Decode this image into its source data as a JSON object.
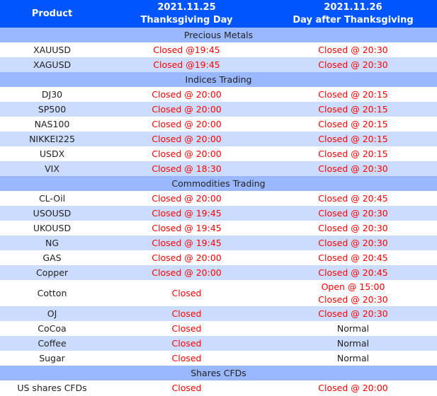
{
  "header": {
    "product": "Product",
    "day1_date": "2021.11.25",
    "day1_name": "Thanksgiving Day",
    "day2_date": "2021.11.26",
    "day2_name": "Day after Thanksgiving"
  },
  "colors": {
    "header": "#0055ff",
    "section": "#99b8ff",
    "alt_row": "#ccdcff",
    "closed_text": "#ff0000"
  },
  "sections": [
    {
      "title": "Precious Metals",
      "rows": [
        {
          "product": "XAUUSD",
          "day1": [
            "Closed @19:45"
          ],
          "day2": [
            "Closed @ 20:30"
          ]
        },
        {
          "product": "XAGUSD",
          "day1": [
            "Closed @19:45"
          ],
          "day2": [
            "Closed @ 20:30"
          ]
        }
      ]
    },
    {
      "title": "Indices Trading",
      "rows": [
        {
          "product": "DJ30",
          "day1": [
            "Closed @ 20:00"
          ],
          "day2": [
            "Closed @ 20:15"
          ]
        },
        {
          "product": "SP500",
          "day1": [
            "Closed @ 20:00"
          ],
          "day2": [
            "Closed @ 20:15"
          ]
        },
        {
          "product": "NAS100",
          "day1": [
            "Closed @ 20:00"
          ],
          "day2": [
            "Closed @ 20:15"
          ]
        },
        {
          "product": "NIKKEI225",
          "day1": [
            "Closed @ 20:00"
          ],
          "day2": [
            "Closed @ 20:15"
          ]
        },
        {
          "product": "USDX",
          "day1": [
            "Closed @ 20:00"
          ],
          "day2": [
            "Closed @ 20:15"
          ]
        },
        {
          "product": "VIX",
          "day1": [
            "Closed @ 18:30"
          ],
          "day2": [
            "Closed @ 20:30"
          ]
        }
      ]
    },
    {
      "title": "Commodities Trading",
      "rows": [
        {
          "product": "CL-Oil",
          "day1": [
            "Closed @ 20:00"
          ],
          "day2": [
            "Closed @ 20:45"
          ]
        },
        {
          "product": "USOUSD",
          "day1": [
            "Closed @ 19:45"
          ],
          "day2": [
            "Closed @ 20:30"
          ]
        },
        {
          "product": "UKOUSD",
          "day1": [
            "Closed @ 19:45"
          ],
          "day2": [
            "Closed @ 20:30"
          ]
        },
        {
          "product": "NG",
          "day1": [
            "Closed @ 19:45"
          ],
          "day2": [
            "Closed @ 20:30"
          ]
        },
        {
          "product": "GAS",
          "day1": [
            "Closed @ 20:00"
          ],
          "day2": [
            "Closed @ 20:45"
          ]
        },
        {
          "product": "Copper",
          "day1": [
            "Closed @ 20:00"
          ],
          "day2": [
            "Closed @ 20:45"
          ]
        },
        {
          "product": "Cotton",
          "day1": [
            "Closed"
          ],
          "day2": [
            "Open   @ 15:00",
            "Closed @ 20:30"
          ]
        },
        {
          "product": "OJ",
          "day1": [
            "Closed"
          ],
          "day2": [
            "Closed @ 20:30"
          ]
        },
        {
          "product": "CoCoa",
          "day1": [
            "Closed"
          ],
          "day2": [
            "Normal"
          ]
        },
        {
          "product": "Coffee",
          "day1": [
            "Closed"
          ],
          "day2": [
            "Normal"
          ]
        },
        {
          "product": "Sugar",
          "day1": [
            "Closed"
          ],
          "day2": [
            "Normal"
          ]
        }
      ]
    },
    {
      "title": "Shares CFDs",
      "rows": [
        {
          "product": "US shares CFDs",
          "day1": [
            "Closed"
          ],
          "day2": [
            "Closed @ 20:00"
          ]
        }
      ]
    }
  ]
}
